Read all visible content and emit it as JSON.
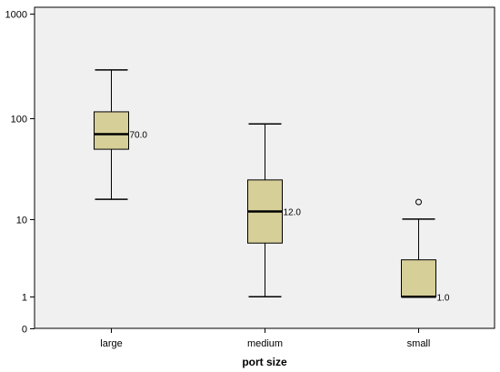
{
  "chart_data": {
    "type": "boxplot",
    "title": "",
    "xlabel": "port size",
    "ylabel": "",
    "y_scale": "symlog",
    "y_ticks": [
      {
        "value": 0,
        "label": "0"
      },
      {
        "value": 1,
        "label": "1"
      },
      {
        "value": 10,
        "label": "10"
      },
      {
        "value": 100,
        "label": "100"
      },
      {
        "value": 1000,
        "label": "1000"
      }
    ],
    "categories": [
      "large",
      "medium",
      "small"
    ],
    "boxes": [
      {
        "category": "large",
        "min": 16,
        "q1": 50,
        "median": 70,
        "q3": 115,
        "max": 290,
        "median_label": "70.0",
        "outliers": []
      },
      {
        "category": "medium",
        "min": 1,
        "q1": 5.5,
        "median": 12,
        "q3": 25,
        "max": 88,
        "median_label": "12.0",
        "outliers": []
      },
      {
        "category": "small",
        "min": 1,
        "q1": 1,
        "median": 1,
        "q3": 3.5,
        "max": 10,
        "median_label": "1.0",
        "outliers": [
          15
        ]
      }
    ],
    "colors": {
      "plot_background": "#f0f0f0",
      "box_fill": "#d7cf98",
      "stroke": "#000000"
    },
    "grid": false,
    "legend": "none"
  }
}
